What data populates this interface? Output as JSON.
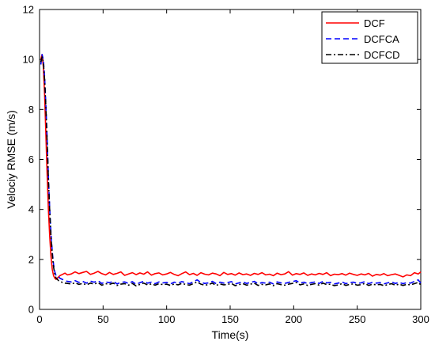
{
  "chart_data": {
    "type": "line",
    "title": "",
    "xlabel": "Time(s)",
    "ylabel": "Velociy RMSE (m/s)",
    "xlim": [
      0,
      300
    ],
    "ylim": [
      0,
      12
    ],
    "xticks": [
      0,
      50,
      100,
      150,
      200,
      250,
      300
    ],
    "yticks": [
      0,
      2,
      4,
      6,
      8,
      10,
      12
    ],
    "grid": false,
    "legend_position": "top-right",
    "series": [
      {
        "name": "DCF",
        "color": "#ff0000",
        "dash": "solid",
        "x": [
          1,
          2,
          3,
          4,
          5,
          6,
          7,
          8,
          9,
          10,
          11,
          12,
          13,
          14,
          15,
          16,
          18,
          20,
          22,
          25,
          28,
          31,
          34,
          37,
          40,
          43,
          46,
          49,
          52,
          55,
          58,
          61,
          64,
          67,
          70,
          73,
          76,
          79,
          82,
          85,
          88,
          91,
          94,
          97,
          100,
          103,
          106,
          109,
          112,
          115,
          118,
          121,
          124,
          127,
          130,
          133,
          136,
          139,
          142,
          145,
          148,
          151,
          154,
          157,
          160,
          163,
          166,
          169,
          172,
          175,
          178,
          181,
          184,
          187,
          190,
          193,
          196,
          199,
          202,
          205,
          208,
          211,
          214,
          217,
          220,
          223,
          226,
          229,
          232,
          235,
          238,
          241,
          244,
          247,
          250,
          253,
          256,
          259,
          262,
          265,
          268,
          271,
          274,
          277,
          280,
          283,
          286,
          289,
          292,
          295,
          298,
          300
        ],
        "y": [
          10.0,
          10.2,
          9.7,
          8.6,
          7.0,
          5.4,
          4.0,
          2.9,
          2.1,
          1.6,
          1.35,
          1.25,
          1.2,
          1.25,
          1.3,
          1.35,
          1.4,
          1.45,
          1.38,
          1.42,
          1.5,
          1.43,
          1.48,
          1.52,
          1.4,
          1.45,
          1.52,
          1.43,
          1.38,
          1.48,
          1.4,
          1.44,
          1.5,
          1.36,
          1.42,
          1.47,
          1.39,
          1.46,
          1.41,
          1.5,
          1.37,
          1.43,
          1.46,
          1.38,
          1.42,
          1.48,
          1.4,
          1.35,
          1.43,
          1.5,
          1.39,
          1.44,
          1.36,
          1.47,
          1.41,
          1.38,
          1.45,
          1.42,
          1.35,
          1.48,
          1.4,
          1.43,
          1.37,
          1.46,
          1.39,
          1.42,
          1.36,
          1.44,
          1.4,
          1.47,
          1.38,
          1.41,
          1.35,
          1.45,
          1.39,
          1.42,
          1.51,
          1.37,
          1.43,
          1.4,
          1.46,
          1.36,
          1.42,
          1.38,
          1.44,
          1.4,
          1.47,
          1.35,
          1.41,
          1.39,
          1.43,
          1.37,
          1.45,
          1.4,
          1.36,
          1.42,
          1.38,
          1.44,
          1.33,
          1.4,
          1.37,
          1.43,
          1.35,
          1.39,
          1.42,
          1.36,
          1.3,
          1.38,
          1.35,
          1.47,
          1.42,
          1.5
        ]
      },
      {
        "name": "DCFCA",
        "color": "#0000ff",
        "dash": "dashed",
        "x": [
          1,
          2,
          3,
          4,
          5,
          6,
          7,
          8,
          9,
          10,
          11,
          12,
          13,
          14,
          15,
          16,
          18,
          20,
          22,
          25,
          28,
          31,
          34,
          37,
          40,
          43,
          46,
          49,
          52,
          55,
          58,
          61,
          64,
          67,
          70,
          73,
          76,
          79,
          82,
          85,
          88,
          91,
          94,
          97,
          100,
          103,
          106,
          109,
          112,
          115,
          118,
          121,
          124,
          127,
          130,
          133,
          136,
          139,
          142,
          145,
          148,
          151,
          154,
          157,
          160,
          163,
          166,
          169,
          172,
          175,
          178,
          181,
          184,
          187,
          190,
          193,
          196,
          199,
          202,
          205,
          208,
          211,
          214,
          217,
          220,
          223,
          226,
          229,
          232,
          235,
          238,
          241,
          244,
          247,
          250,
          253,
          256,
          259,
          262,
          265,
          268,
          271,
          274,
          277,
          280,
          283,
          286,
          289,
          292,
          295,
          298,
          300
        ],
        "y": [
          9.8,
          10.2,
          10.0,
          9.3,
          8.2,
          6.8,
          5.3,
          4.0,
          3.0,
          2.3,
          1.8,
          1.5,
          1.35,
          1.3,
          1.3,
          1.25,
          1.2,
          1.15,
          1.12,
          1.1,
          1.15,
          1.08,
          1.12,
          1.05,
          1.13,
          1.09,
          1.15,
          1.04,
          1.1,
          1.07,
          1.12,
          1.02,
          1.08,
          1.1,
          1.04,
          1.11,
          1.0,
          1.07,
          1.12,
          1.05,
          1.09,
          1.03,
          1.1,
          1.06,
          1.08,
          1.02,
          1.09,
          1.05,
          1.11,
          1.07,
          1.03,
          1.1,
          1.18,
          1.08,
          1.04,
          1.06,
          1.12,
          1.03,
          1.09,
          1.05,
          1.07,
          1.11,
          1.02,
          1.06,
          1.1,
          1.04,
          1.08,
          1.12,
          1.03,
          1.07,
          1.05,
          1.09,
          1.02,
          1.1,
          1.06,
          1.04,
          1.08,
          1.11,
          1.15,
          1.05,
          1.09,
          1.03,
          1.07,
          1.1,
          1.04,
          1.12,
          1.06,
          1.08,
          1.02,
          1.05,
          1.1,
          1.03,
          1.07,
          1.09,
          1.04,
          1.06,
          1.11,
          1.03,
          1.08,
          1.05,
          1.07,
          1.02,
          1.06,
          1.1,
          1.04,
          1.08,
          1.03,
          1.07,
          1.05,
          1.12,
          1.18,
          1.05
        ]
      },
      {
        "name": "DCFCD",
        "color": "#000000",
        "dash": "dash-dot",
        "x": [
          1,
          2,
          3,
          4,
          5,
          6,
          7,
          8,
          9,
          10,
          11,
          12,
          13,
          14,
          15,
          16,
          18,
          20,
          22,
          25,
          28,
          31,
          34,
          37,
          40,
          43,
          46,
          49,
          52,
          55,
          58,
          61,
          64,
          67,
          70,
          73,
          76,
          79,
          82,
          85,
          88,
          91,
          94,
          97,
          100,
          103,
          106,
          109,
          112,
          115,
          118,
          121,
          124,
          127,
          130,
          133,
          136,
          139,
          142,
          145,
          148,
          151,
          154,
          157,
          160,
          163,
          166,
          169,
          172,
          175,
          178,
          181,
          184,
          187,
          190,
          193,
          196,
          199,
          202,
          205,
          208,
          211,
          214,
          217,
          220,
          223,
          226,
          229,
          232,
          235,
          238,
          241,
          244,
          247,
          250,
          253,
          256,
          259,
          262,
          265,
          268,
          271,
          274,
          277,
          280,
          283,
          286,
          289,
          292,
          295,
          298,
          300
        ],
        "y": [
          9.9,
          10.1,
          9.9,
          9.2,
          8.1,
          6.7,
          5.2,
          3.9,
          2.9,
          2.2,
          1.7,
          1.4,
          1.25,
          1.2,
          1.15,
          1.12,
          1.08,
          1.05,
          1.04,
          1.02,
          1.06,
          1.0,
          1.04,
          0.98,
          1.05,
          1.01,
          1.07,
          0.97,
          1.03,
          1.0,
          1.05,
          0.96,
          1.01,
          1.03,
          0.97,
          1.04,
          0.94,
          1.0,
          1.05,
          0.98,
          1.02,
          0.97,
          1.03,
          0.99,
          1.01,
          0.96,
          1.02,
          0.98,
          1.04,
          1.0,
          0.97,
          1.03,
          1.1,
          1.01,
          0.97,
          0.99,
          1.05,
          0.96,
          1.02,
          0.98,
          1.0,
          1.04,
          0.95,
          0.99,
          1.03,
          0.97,
          1.01,
          1.05,
          0.96,
          1.0,
          0.98,
          1.02,
          0.95,
          1.03,
          0.99,
          0.97,
          1.01,
          1.04,
          1.08,
          0.98,
          1.02,
          0.96,
          1.0,
          1.03,
          0.97,
          1.05,
          0.99,
          1.01,
          0.95,
          0.98,
          1.03,
          0.96,
          1.0,
          1.02,
          0.97,
          0.99,
          1.04,
          0.96,
          1.01,
          0.98,
          1.0,
          0.95,
          0.99,
          1.03,
          0.97,
          1.01,
          0.96,
          1.0,
          0.98,
          1.03,
          1.08,
          0.98
        ]
      }
    ]
  }
}
